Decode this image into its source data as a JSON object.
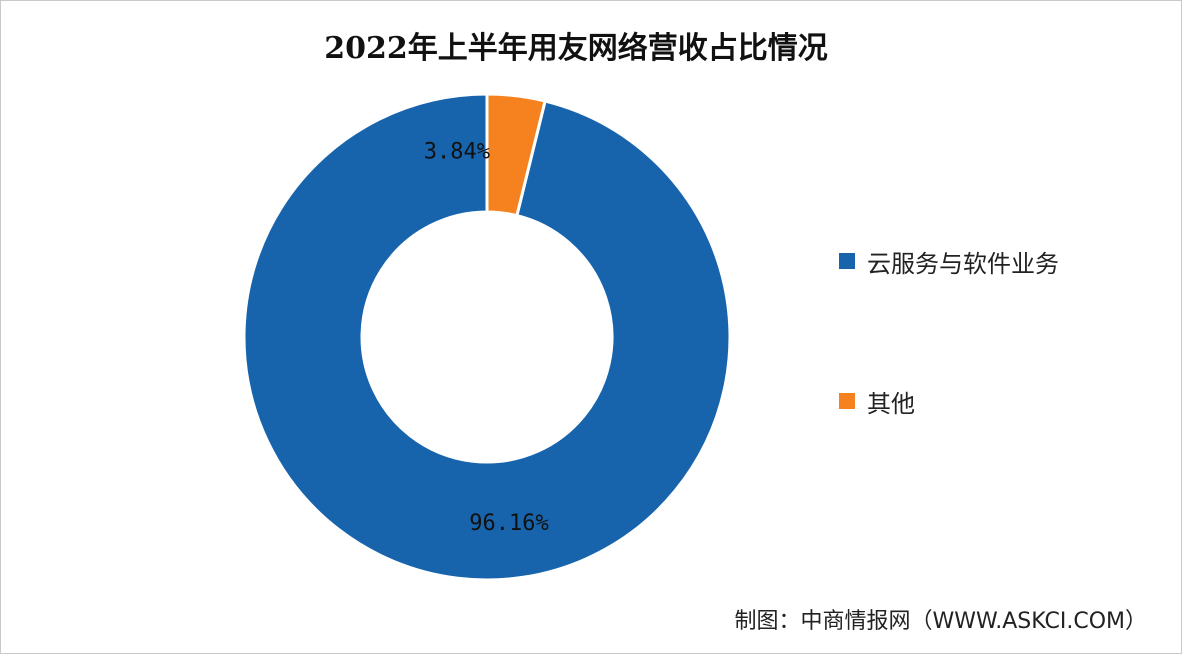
{
  "chart_data": {
    "type": "pie",
    "title": "2022年上半年用友网络营收占比情况",
    "slices": [
      {
        "label": "云服务与软件业务",
        "value": 96.16,
        "display": "96.16%",
        "color": "#1764ac"
      },
      {
        "label": "其他",
        "value": 3.84,
        "display": "3.84%",
        "color": "#f5821f"
      }
    ],
    "donut": true,
    "legend_position": "right"
  },
  "footer": {
    "source": "制图：中商情报网（WWW.ASKCI.COM）"
  }
}
